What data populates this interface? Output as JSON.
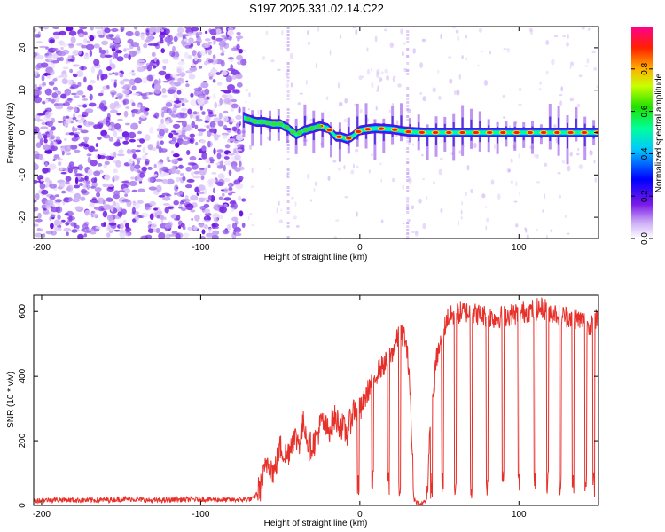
{
  "title": "S197.2025.331.02.14.C22",
  "chart_data": [
    {
      "type": "heatmap",
      "name": "spectrogram",
      "xlabel": "Height of straight line (km)",
      "ylabel": "Frequency (Hz)",
      "xlim": [
        -205,
        150
      ],
      "ylim": [
        -25,
        25
      ],
      "x_ticks": [
        -200,
        -100,
        0,
        100
      ],
      "x_tick_labels": [
        "-200",
        "-100",
        "0",
        "100"
      ],
      "y_ticks": [
        -20,
        -10,
        0,
        10,
        20
      ],
      "y_tick_labels": [
        "-20",
        "-10",
        "0",
        "10",
        "20"
      ],
      "colorbar": {
        "label": "Normalized spectral amplitude",
        "range": [
          0,
          1
        ],
        "ticks": [
          0.0,
          0.2,
          0.4,
          0.6,
          0.8
        ],
        "tick_labels": [
          "0.0",
          "0.2",
          "0.4",
          "0.6",
          "0.8"
        ],
        "colors": [
          "#ffffff",
          "#b37ff0",
          "#6a00e0",
          "#0000ff",
          "#00c8ff",
          "#00ff80",
          "#30e000",
          "#ffff00",
          "#ff8000",
          "#ff0000",
          "#ff00aa"
        ]
      },
      "noise_region_x": [
        -205,
        -73
      ],
      "signal_track": {
        "x": [
          -73,
          -65,
          -60,
          -55,
          -50,
          -45,
          -40,
          -35,
          -30,
          -25,
          -20,
          -15,
          -12,
          -8,
          -5,
          0,
          5,
          10,
          20,
          30,
          40,
          60,
          80,
          100,
          120,
          140,
          150
        ],
        "freq": [
          3.5,
          2.5,
          2.5,
          2.0,
          2.0,
          1.0,
          -0.5,
          0.5,
          1.0,
          1.5,
          1.0,
          -1.0,
          -1.0,
          -1.5,
          -1.0,
          0.5,
          0.8,
          1.0,
          0.8,
          0.2,
          0.0,
          0.0,
          0.0,
          0.0,
          0.0,
          0.0,
          0.0
        ]
      },
      "vertical_streaks_x": [
        -45,
        30
      ]
    },
    {
      "type": "line",
      "name": "snr",
      "xlabel": "Height of straight line (km)",
      "ylabel": "SNR (10 * v/v)",
      "xlim": [
        -205,
        150
      ],
      "ylim": [
        0,
        650
      ],
      "x_ticks": [
        -200,
        -100,
        0,
        100
      ],
      "x_tick_labels": [
        "-200",
        "-100",
        "0",
        "100"
      ],
      "y_ticks": [
        0,
        200,
        400,
        600
      ],
      "y_tick_labels": [
        "0",
        "200",
        "400",
        "600"
      ],
      "color": "#e8302a",
      "series": [
        {
          "name": "SNR",
          "x": [
            -205,
            -190,
            -175,
            -160,
            -145,
            -130,
            -115,
            -100,
            -85,
            -75,
            -67,
            -62,
            -58,
            -54,
            -50,
            -46,
            -42,
            -38,
            -35,
            -32,
            -28,
            -24,
            -20,
            -16,
            -12,
            -8,
            -4,
            0,
            4,
            8,
            12,
            16,
            20,
            24,
            28,
            31,
            34,
            38,
            42,
            44,
            48,
            55,
            65,
            75,
            85,
            95,
            105,
            115,
            125,
            135,
            145,
            150
          ],
          "y": [
            15,
            18,
            16,
            17,
            20,
            15,
            18,
            19,
            17,
            18,
            20,
            60,
            140,
            100,
            180,
            150,
            210,
            200,
            260,
            180,
            200,
            260,
            230,
            270,
            250,
            220,
            300,
            290,
            340,
            390,
            420,
            440,
            470,
            520,
            530,
            420,
            20,
            0,
            20,
            200,
            450,
            580,
            600,
            590,
            580,
            590,
            600,
            610,
            590,
            580,
            560,
            590
          ]
        }
      ],
      "dropouts_x": [
        -1,
        8,
        18,
        25,
        45,
        52,
        60,
        70,
        80,
        90,
        100,
        110,
        118,
        126,
        134,
        142,
        147
      ]
    }
  ]
}
